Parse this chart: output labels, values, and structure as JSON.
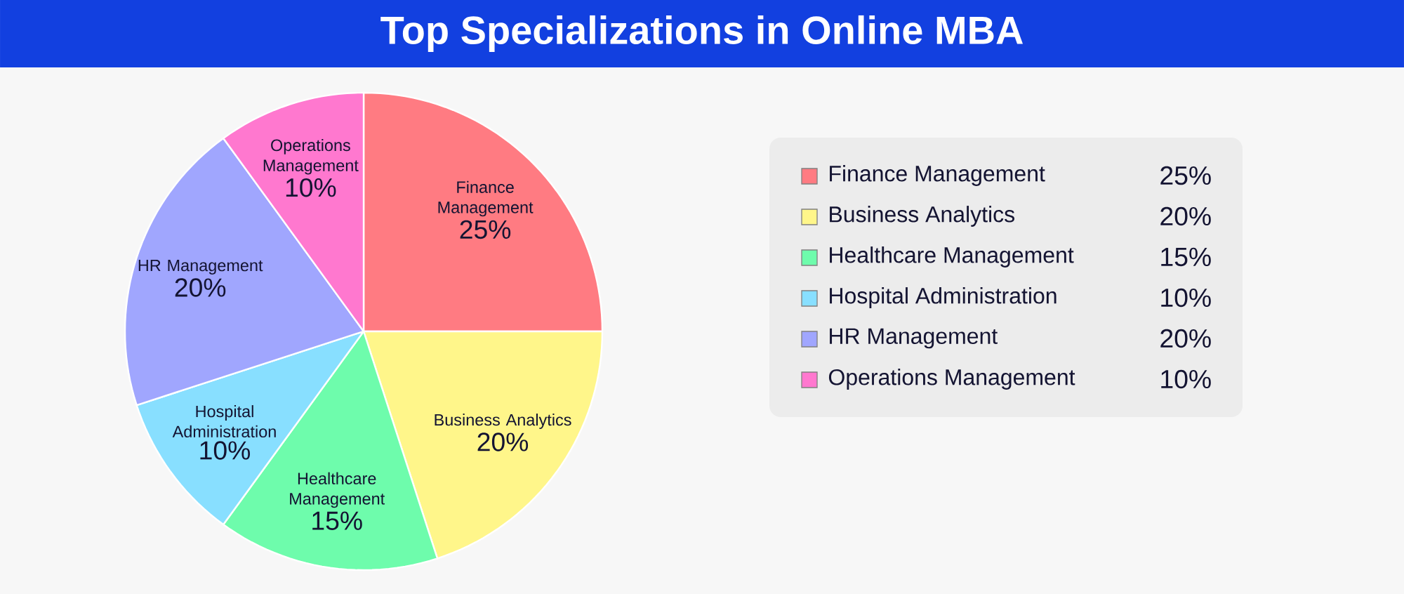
{
  "chart_data": {
    "type": "pie",
    "title": "Top Specializations in Online MBA",
    "categories": [
      "Finance Management",
      "Business Analytics",
      "Healthcare Management",
      "Hospital Administration",
      "HR Management",
      "Operations Management"
    ],
    "values": [
      25,
      20,
      15,
      10,
      20,
      10
    ],
    "value_labels": [
      "25%",
      "20%",
      "15%",
      "10%",
      "20%",
      "10%"
    ],
    "colors": [
      "#ff7b82",
      "#fff68a",
      "#6efcac",
      "#88dfff",
      "#a0a6fe",
      "#ff78cf"
    ],
    "legend": "right"
  }
}
